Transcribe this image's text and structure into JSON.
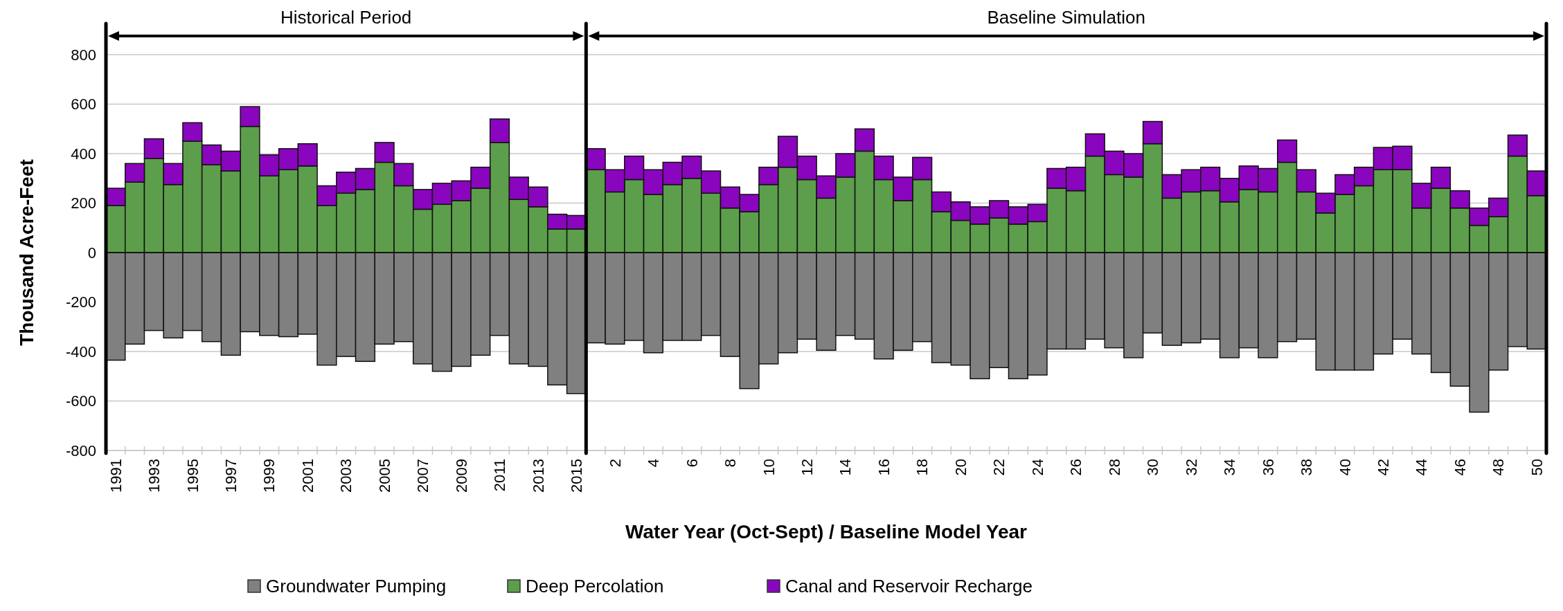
{
  "chart_data": {
    "type": "bar",
    "stacked": true,
    "xlabel": "Water Year (Oct-Sept) / Baseline Model Year",
    "ylabel": "Thousand Acre-Feet",
    "annotations": [
      "Historical Period",
      "Baseline Simulation"
    ],
    "categories": [
      "1991",
      null,
      "1993",
      null,
      "1995",
      null,
      "1997",
      null,
      "1999",
      null,
      "2001",
      null,
      "2003",
      null,
      "2005",
      null,
      "2007",
      null,
      "2009",
      null,
      "2011",
      null,
      "2013",
      null,
      "2015",
      null,
      "2",
      null,
      "4",
      null,
      "6",
      null,
      "8",
      null,
      "10",
      null,
      "12",
      null,
      "14",
      null,
      "16",
      null,
      "18",
      null,
      "20",
      null,
      "22",
      null,
      "24",
      null,
      "26",
      null,
      "28",
      null,
      "30",
      null,
      "32",
      null,
      "34",
      null,
      "36",
      null,
      "38",
      null,
      "40",
      null,
      "42",
      null,
      "44",
      null,
      "46",
      null,
      "48",
      null,
      "50"
    ],
    "series": [
      {
        "name": "Groundwater Pumping",
        "color": "#808080",
        "values": [
          -435,
          -370,
          -315,
          -345,
          -315,
          -360,
          -415,
          -320,
          -335,
          -340,
          -330,
          -455,
          -420,
          -440,
          -370,
          -360,
          -450,
          -480,
          -460,
          -415,
          -335,
          -450,
          -460,
          -535,
          -570,
          -365,
          -370,
          -355,
          -405,
          -355,
          -355,
          -335,
          -420,
          -550,
          -450,
          -405,
          -350,
          -395,
          -335,
          -350,
          -430,
          -395,
          -360,
          -445,
          -455,
          -510,
          -465,
          -510,
          -495,
          -390,
          -390,
          -350,
          -385,
          -425,
          -325,
          -375,
          -365,
          -350,
          -425,
          -385,
          -425,
          -360,
          -350,
          -475,
          -475,
          -475,
          -410,
          -350,
          -410,
          -485,
          -540,
          -645,
          -475,
          -380,
          -390
        ]
      },
      {
        "name": "Deep Percolation",
        "color": "#5c9e4c",
        "values": [
          190,
          285,
          380,
          275,
          450,
          355,
          330,
          510,
          310,
          335,
          350,
          190,
          240,
          255,
          365,
          270,
          175,
          195,
          210,
          260,
          445,
          215,
          185,
          95,
          95,
          335,
          245,
          295,
          235,
          275,
          300,
          240,
          180,
          165,
          275,
          345,
          295,
          220,
          305,
          410,
          295,
          210,
          295,
          165,
          130,
          115,
          140,
          115,
          125,
          260,
          250,
          390,
          315,
          305,
          440,
          220,
          245,
          250,
          205,
          255,
          245,
          365,
          245,
          160,
          235,
          270,
          335,
          335,
          180,
          260,
          180,
          110,
          145,
          390,
          230
        ]
      },
      {
        "name": "Canal and Reservoir Recharge",
        "color": "#8a05be",
        "values": [
          70,
          75,
          80,
          85,
          75,
          80,
          80,
          80,
          85,
          85,
          90,
          80,
          85,
          85,
          80,
          90,
          80,
          85,
          80,
          85,
          95,
          90,
          80,
          60,
          55,
          85,
          90,
          95,
          100,
          90,
          90,
          90,
          85,
          70,
          70,
          125,
          95,
          90,
          95,
          90,
          95,
          95,
          90,
          80,
          75,
          70,
          70,
          70,
          70,
          80,
          95,
          90,
          95,
          95,
          90,
          95,
          90,
          95,
          95,
          95,
          95,
          90,
          90,
          80,
          80,
          75,
          90,
          95,
          100,
          85,
          70,
          70,
          75,
          85,
          100
        ]
      }
    ],
    "ylim": [
      -800,
      800
    ],
    "yticks": [
      -800,
      -600,
      -400,
      -200,
      0,
      200,
      400,
      600,
      800
    ],
    "grid": "y",
    "legend": "bottom",
    "ref_lines": [
      {
        "axis": "x",
        "value": "2015",
        "color": "#000000"
      }
    ]
  }
}
